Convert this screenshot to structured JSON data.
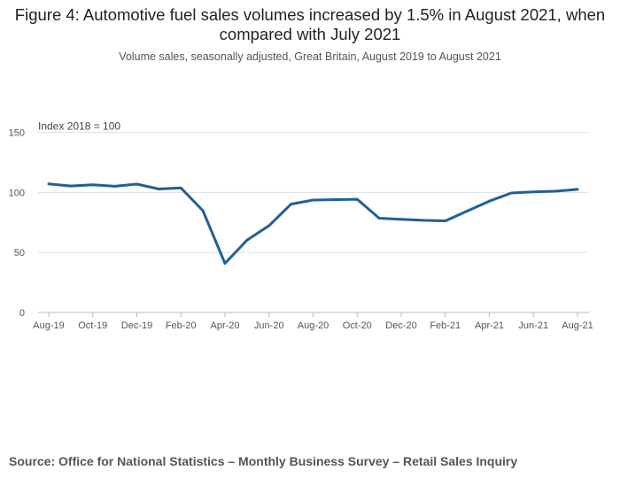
{
  "title": "Figure 4: Automotive fuel sales volumes increased by 1.5% in August 2021, when compared with July 2021",
  "subtitle": "Volume sales, seasonally adjusted, Great Britain, August 2019 to August 2021",
  "source": "Source: Office for National Statistics – Monthly Business Survey – Retail Sales Inquiry",
  "colors": {
    "line": "#206095",
    "grid": "#e0e0e0",
    "axis": "#bbbbbb"
  },
  "chart_data": {
    "type": "line",
    "title": "Figure 4: Automotive fuel sales volumes increased by 1.5% in August 2021, when compared with July 2021",
    "ylabel": "Index 2018 = 100",
    "xlabel": "",
    "ylim": [
      0,
      150
    ],
    "y_ticks": [
      "0",
      "50",
      "100",
      "150"
    ],
    "x": [
      "Aug-19",
      "Sep-19",
      "Oct-19",
      "Nov-19",
      "Dec-19",
      "Jan-20",
      "Feb-20",
      "Mar-20",
      "Apr-20",
      "May-20",
      "Jun-20",
      "Jul-20",
      "Aug-20",
      "Sep-20",
      "Oct-20",
      "Nov-20",
      "Dec-20",
      "Jan-21",
      "Feb-21",
      "Mar-21",
      "Apr-21",
      "May-21",
      "Jun-21",
      "Jul-21",
      "Aug-21"
    ],
    "x_tick_labels": [
      "Aug-19",
      "Oct-19",
      "Dec-19",
      "Feb-20",
      "Apr-20",
      "Jun-20",
      "Aug-20",
      "Oct-20",
      "Dec-20",
      "Feb-21",
      "Apr-21",
      "Jun-21",
      "Aug-21"
    ],
    "series": [
      {
        "name": "Automotive fuel",
        "values": [
          107.0,
          105.3,
          106.4,
          105.1,
          106.9,
          102.8,
          103.7,
          84.8,
          40.9,
          60.2,
          72.3,
          90.2,
          93.6,
          94.0,
          94.3,
          78.5,
          77.6,
          76.7,
          76.3,
          84.5,
          92.7,
          99.5,
          100.5,
          101.0,
          102.5
        ]
      }
    ]
  }
}
